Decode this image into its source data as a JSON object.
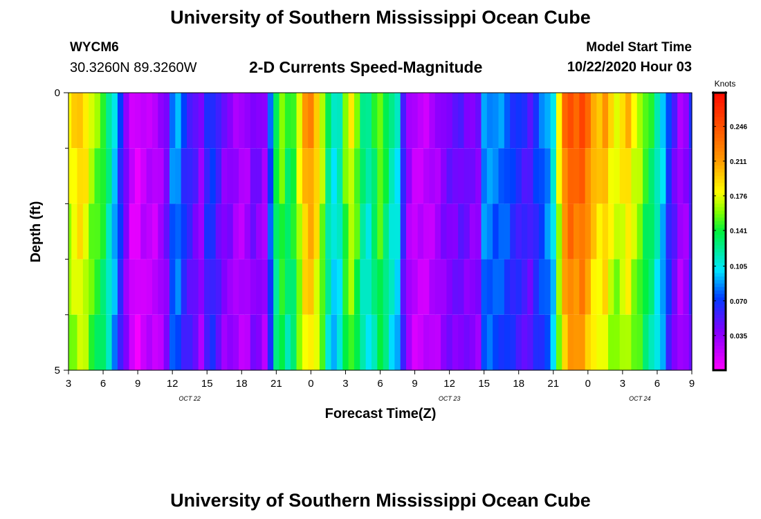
{
  "header": {
    "title": "University of Southern Mississippi Ocean Cube",
    "station_name": "WYCM6",
    "station_coords": "30.3260N 89.3260W",
    "plot_title": "2-D Currents Speed-Magnitude",
    "model_label": "Model Start Time",
    "model_time": "10/22/2020 Hour 03"
  },
  "footer": {
    "title": "University of Southern Mississippi Ocean Cube"
  },
  "chart_data": {
    "type": "heatmap",
    "title": "2-D Currents Speed-Magnitude",
    "xlabel": "Forecast Time(Z)",
    "ylabel": "Depth (ft)",
    "x_start_hour": 3,
    "x_end_hour": 57,
    "x_ticks": [
      {
        "hour": 3,
        "label": "3"
      },
      {
        "hour": 6,
        "label": "6"
      },
      {
        "hour": 9,
        "label": "9"
      },
      {
        "hour": 12,
        "label": "12"
      },
      {
        "hour": 15,
        "label": "15"
      },
      {
        "hour": 18,
        "label": "18"
      },
      {
        "hour": 21,
        "label": "21"
      },
      {
        "hour": 24,
        "label": "0"
      },
      {
        "hour": 27,
        "label": "3"
      },
      {
        "hour": 30,
        "label": "6"
      },
      {
        "hour": 33,
        "label": "9"
      },
      {
        "hour": 36,
        "label": "12"
      },
      {
        "hour": 39,
        "label": "15"
      },
      {
        "hour": 42,
        "label": "18"
      },
      {
        "hour": 45,
        "label": "21"
      },
      {
        "hour": 48,
        "label": "0"
      },
      {
        "hour": 51,
        "label": "3"
      },
      {
        "hour": 54,
        "label": "6"
      },
      {
        "hour": 57,
        "label": "9"
      }
    ],
    "date_labels": [
      {
        "hour": 13.5,
        "label": "OCT 22"
      },
      {
        "hour": 36,
        "label": "OCT 23"
      },
      {
        "hour": 52.5,
        "label": "OCT 24"
      }
    ],
    "y_ticks": [
      {
        "depth": 0,
        "label": "0"
      },
      {
        "depth": 5,
        "label": "5"
      }
    ],
    "y_minor_ticks": [
      1,
      2,
      3,
      4
    ],
    "depth_range": [
      0,
      5
    ],
    "depth_levels": [
      0,
      1,
      2,
      3,
      4,
      5
    ],
    "colorbar": {
      "unit": "Knots",
      "range": [
        0,
        0.28
      ],
      "tick_labels": [
        "0.246",
        "0.211",
        "0.176",
        "0.141",
        "0.105",
        "0.070",
        "0.035"
      ],
      "tick_values": [
        0.246,
        0.211,
        0.176,
        0.141,
        0.105,
        0.07,
        0.035
      ]
    },
    "speed_profile_knots": [
      [
        3.0,
        0.18
      ],
      [
        3.5,
        0.19
      ],
      [
        4.0,
        0.2
      ],
      [
        4.5,
        0.19
      ],
      [
        5.0,
        0.17
      ],
      [
        5.5,
        0.16
      ],
      [
        6.0,
        0.15
      ],
      [
        6.5,
        0.125
      ],
      [
        7.0,
        0.1
      ],
      [
        7.5,
        0.07
      ],
      [
        8.0,
        0.04
      ],
      [
        8.5,
        0.015
      ],
      [
        9.0,
        0.01
      ],
      [
        9.5,
        0.02
      ],
      [
        10.0,
        0.022
      ],
      [
        10.5,
        0.02
      ],
      [
        11.0,
        0.03
      ],
      [
        11.5,
        0.045
      ],
      [
        12.0,
        0.085
      ],
      [
        12.5,
        0.09
      ],
      [
        13.0,
        0.07
      ],
      [
        13.5,
        0.06
      ],
      [
        14.0,
        0.05
      ],
      [
        14.5,
        0.035
      ],
      [
        15.0,
        0.065
      ],
      [
        15.5,
        0.07
      ],
      [
        16.0,
        0.055
      ],
      [
        16.5,
        0.04
      ],
      [
        17.0,
        0.04
      ],
      [
        17.5,
        0.03
      ],
      [
        18.0,
        0.025
      ],
      [
        18.5,
        0.03
      ],
      [
        19.0,
        0.045
      ],
      [
        19.5,
        0.04
      ],
      [
        20.0,
        0.03
      ],
      [
        20.5,
        0.08
      ],
      [
        21.0,
        0.14
      ],
      [
        21.5,
        0.16
      ],
      [
        22.0,
        0.14
      ],
      [
        22.5,
        0.15
      ],
      [
        23.0,
        0.18
      ],
      [
        23.5,
        0.21
      ],
      [
        24.0,
        0.22
      ],
      [
        24.5,
        0.2
      ],
      [
        25.0,
        0.17
      ],
      [
        25.5,
        0.13
      ],
      [
        26.0,
        0.11
      ],
      [
        26.5,
        0.12
      ],
      [
        27.0,
        0.16
      ],
      [
        27.5,
        0.18
      ],
      [
        28.0,
        0.16
      ],
      [
        28.5,
        0.13
      ],
      [
        29.0,
        0.12
      ],
      [
        29.5,
        0.14
      ],
      [
        30.0,
        0.16
      ],
      [
        30.5,
        0.14
      ],
      [
        31.0,
        0.12
      ],
      [
        31.5,
        0.11
      ],
      [
        32.0,
        0.06
      ],
      [
        32.5,
        0.03
      ],
      [
        33.0,
        0.02
      ],
      [
        33.5,
        0.02
      ],
      [
        34.0,
        0.02
      ],
      [
        34.5,
        0.025
      ],
      [
        35.0,
        0.03
      ],
      [
        35.5,
        0.04
      ],
      [
        36.0,
        0.045
      ],
      [
        36.5,
        0.045
      ],
      [
        37.0,
        0.05
      ],
      [
        37.5,
        0.045
      ],
      [
        38.0,
        0.04
      ],
      [
        38.5,
        0.04
      ],
      [
        39.0,
        0.09
      ],
      [
        39.5,
        0.09
      ],
      [
        40.0,
        0.085
      ],
      [
        40.5,
        0.085
      ],
      [
        41.0,
        0.08
      ],
      [
        41.5,
        0.07
      ],
      [
        42.0,
        0.065
      ],
      [
        42.5,
        0.06
      ],
      [
        43.0,
        0.055
      ],
      [
        43.5,
        0.07
      ],
      [
        44.0,
        0.08
      ],
      [
        44.5,
        0.09
      ],
      [
        45.0,
        0.11
      ],
      [
        45.5,
        0.18
      ],
      [
        46.0,
        0.23
      ],
      [
        46.5,
        0.25
      ],
      [
        47.0,
        0.24
      ],
      [
        47.5,
        0.25
      ],
      [
        48.0,
        0.23
      ],
      [
        48.5,
        0.21
      ],
      [
        49.0,
        0.2
      ],
      [
        49.5,
        0.21
      ],
      [
        50.0,
        0.19
      ],
      [
        50.5,
        0.18
      ],
      [
        51.0,
        0.19
      ],
      [
        51.5,
        0.2
      ],
      [
        52.0,
        0.18
      ],
      [
        52.5,
        0.17
      ],
      [
        53.0,
        0.15
      ],
      [
        53.5,
        0.14
      ],
      [
        54.0,
        0.12
      ],
      [
        54.5,
        0.1
      ],
      [
        55.0,
        0.07
      ],
      [
        55.5,
        0.05
      ],
      [
        56.0,
        0.03
      ],
      [
        56.5,
        0.035
      ],
      [
        57.0,
        0.06
      ]
    ]
  }
}
